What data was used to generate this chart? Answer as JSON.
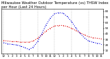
{
  "title": "Milwaukee Weather Outdoor Temperature (vs) THSW Index per Hour (Last 24 Hours)",
  "title_fontsize": 3.8,
  "background_color": "#ffffff",
  "grid_color": "#999999",
  "hours": [
    0,
    1,
    2,
    3,
    4,
    5,
    6,
    7,
    8,
    9,
    10,
    11,
    12,
    13,
    14,
    15,
    16,
    17,
    18,
    19,
    20,
    21,
    22,
    23
  ],
  "temp": [
    28,
    27,
    26,
    26,
    25,
    25,
    25,
    27,
    32,
    38,
    45,
    50,
    54,
    55,
    55,
    53,
    50,
    46,
    42,
    38,
    35,
    33,
    32,
    31
  ],
  "thsw": [
    24,
    22,
    21,
    20,
    18,
    15,
    12,
    16,
    26,
    40,
    56,
    68,
    76,
    78,
    77,
    71,
    62,
    51,
    41,
    33,
    27,
    25,
    23,
    22
  ],
  "temp_color": "#dd0000",
  "thsw_color": "#0000dd",
  "ylim": [
    5,
    85
  ],
  "yticks": [
    10,
    20,
    30,
    40,
    50,
    60,
    70,
    80
  ],
  "ytick_labels": [
    "10",
    "20",
    "30",
    "40",
    "50",
    "60",
    "70",
    "80"
  ],
  "tick_fontsize": 3.0,
  "xlabel_fontsize": 3.0,
  "line_markersize": 1.5,
  "gridline_every": 4,
  "xtick_labels": [
    "12",
    "1",
    "2",
    "3",
    "4",
    "5",
    "6",
    "7",
    "8",
    "9",
    "10",
    "11",
    "12",
    "1",
    "2",
    "3",
    "4",
    "5",
    "6",
    "7",
    "8",
    "9",
    "10",
    "11"
  ]
}
